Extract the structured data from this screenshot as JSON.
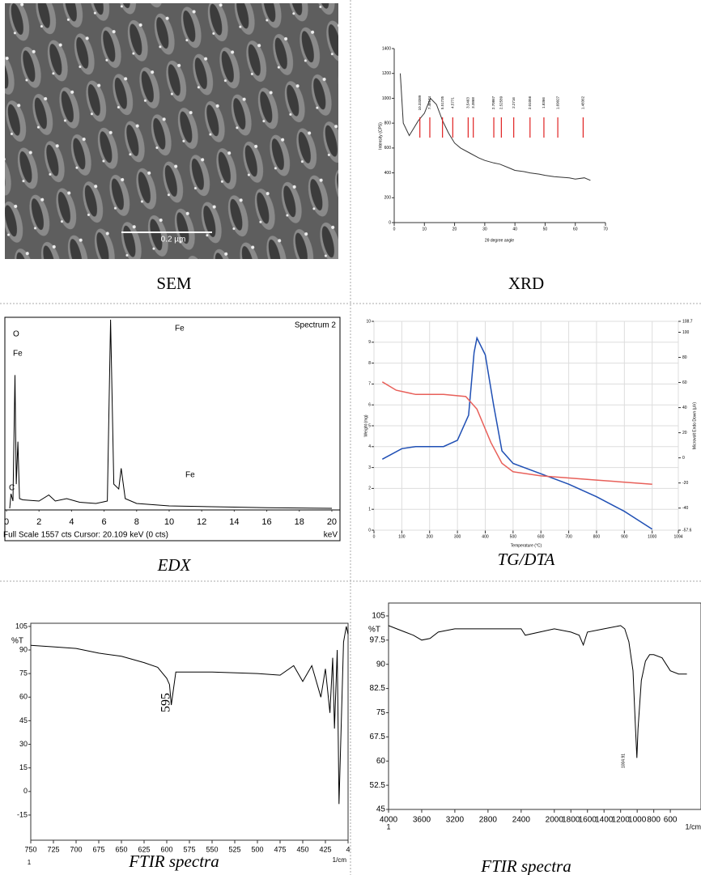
{
  "figure": {
    "panels": [
      {
        "caption": "SEM",
        "scale_bar": "0.2 µm"
      },
      {
        "caption": "XRD",
        "x_label": "2θ degree angle",
        "y_label": "Intensity (CPS)",
        "xlim": [
          0,
          70
        ],
        "ylim": [
          0,
          1400
        ],
        "xticks": [
          0,
          10,
          20,
          30,
          40,
          50,
          60,
          70
        ],
        "yticks": [
          0,
          200,
          400,
          600,
          800,
          1000,
          1200,
          1400
        ],
        "series": [
          {
            "color": "#333333",
            "x": [
              2,
              3,
              5,
              8,
              10,
              12,
              14,
              16,
              18,
              20,
              22,
              25,
              28,
              30,
              33,
              35,
              38,
              40,
              43,
              45,
              48,
              50,
              53,
              55,
              58,
              60,
              63,
              65
            ],
            "values": [
              1200,
              800,
              700,
              820,
              880,
              1000,
              950,
              820,
              720,
              640,
              600,
              560,
              520,
              500,
              480,
              470,
              440,
              420,
              410,
              400,
              390,
              380,
              370,
              365,
              360,
              350,
              360,
              340
            ]
          }
        ],
        "peaks": [
          {
            "x": 8.5,
            "label": "10.33389"
          },
          {
            "x": 11.8,
            "label": "7.46174"
          },
          {
            "x": 16,
            "label": "5.51735"
          },
          {
            "x": 19.4,
            "label": "4.5771"
          },
          {
            "x": 24.5,
            "label": "3.5463"
          },
          {
            "x": 26.2,
            "label": "3.3868"
          },
          {
            "x": 33,
            "label": "2.70867"
          },
          {
            "x": 35.5,
            "label": "2.52589"
          },
          {
            "x": 39.6,
            "label": "2.2716"
          },
          {
            "x": 45,
            "label": "2.01056"
          },
          {
            "x": 49.6,
            "label": "1.8366"
          },
          {
            "x": 54.2,
            "label": "1.69027"
          },
          {
            "x": 62.6,
            "label": "1.48362"
          }
        ],
        "grid": false
      },
      {
        "caption": "EDX",
        "spectrum_label": "Spectrum 2",
        "peak_labels": [
          "O",
          "Fe",
          "C",
          "Fe",
          "Fe"
        ],
        "x_unit": "keV",
        "footer": "Full Scale 1557 cts  Cursor: 20.109 keV (0 cts)",
        "xlim": [
          0,
          20.5
        ],
        "ylim": [
          0,
          1557
        ],
        "xticks": [
          0,
          2,
          4,
          6,
          8,
          10,
          12,
          14,
          16,
          18,
          20
        ],
        "yticks": [],
        "series": [
          {
            "color": "#000000",
            "x": [
              0.2,
              0.28,
              0.4,
              0.52,
              0.6,
              0.7,
              0.8,
              1.0,
              2.0,
              2.6,
              3.0,
              3.7,
              4.5,
              5.5,
              6.2,
              6.4,
              6.6,
              6.9,
              7.05,
              7.3,
              8,
              10,
              12,
              14,
              16,
              20
            ],
            "values": [
              0,
              120,
              60,
              1100,
              200,
              550,
              80,
              70,
              60,
              110,
              60,
              80,
              50,
              40,
              60,
              1557,
              200,
              160,
              330,
              80,
              40,
              20,
              15,
              10,
              5,
              0
            ]
          }
        ],
        "grid": false
      },
      {
        "caption": "TG/DTA",
        "x_label": "Temperature (°C)",
        "y_label": "Weight (mg)",
        "y2_label": "Microvolt Endo Down (µV)",
        "xlim": [
          0,
          1094
        ],
        "ylim": [
          0,
          10
        ],
        "y2lim": [
          -57.6,
          108.7
        ],
        "xticks": [
          0,
          100,
          200,
          300,
          400,
          500,
          600,
          700,
          800,
          900,
          1000,
          1094
        ],
        "yticks": [
          0,
          1,
          2,
          3,
          4,
          5,
          6,
          7,
          8,
          9,
          10
        ],
        "y2ticks": [
          -57.6,
          -40,
          -20,
          0,
          20,
          40,
          60,
          80,
          100,
          108.7
        ],
        "series": [
          {
            "color": "#1f4fb4",
            "axis": "y2",
            "x": [
              30,
              100,
              150,
              250,
              300,
              340,
              360,
              370,
              400,
              430,
              460,
              500,
              600,
              700,
              800,
              900,
              1000
            ],
            "values": [
              -1.1,
              7.3,
              9,
              9,
              14,
              34,
              84,
              95.4,
              82,
              42,
              5.6,
              -4.4,
              -12.7,
              -21,
              -31,
              -42.6,
              -56.8
            ]
          },
          {
            "color": "#e8605a",
            "x": [
              30,
              80,
              150,
              250,
              330,
              370,
              420,
              460,
              500,
              600,
              800,
              1000
            ],
            "values": [
              7.1,
              6.7,
              6.5,
              6.5,
              6.4,
              5.8,
              4.2,
              3.2,
              2.8,
              2.6,
              2.4,
              2.2
            ]
          }
        ],
        "grid": true
      },
      {
        "caption": "FTIR spectra",
        "y_label": "%T",
        "x_sub": "1",
        "x_unit": "1/cm",
        "peak_label": "595",
        "xlim": [
          750,
          400
        ],
        "ylim": [
          -31,
          107
        ],
        "xticks": [
          750,
          725,
          700,
          675,
          650,
          625,
          600,
          575,
          550,
          525,
          500,
          475,
          450,
          425,
          {
            "value": 400,
            "label": "4"
          }
        ],
        "yticks": [
          -15,
          0,
          15,
          30,
          45,
          60,
          75,
          90,
          105
        ],
        "series": [
          {
            "color": "#000000",
            "x": [
              750,
              725,
              700,
              675,
              650,
              625,
              610,
              600,
              597,
              595,
              590,
              575,
              550,
              500,
              475,
              460,
              450,
              440,
              430,
              425,
              420,
              417,
              415,
              412,
              410,
              405,
              402,
              400
            ],
            "values": [
              93,
              92,
              91,
              88,
              86,
              82,
              79,
              72,
              68,
              55,
              76,
              76,
              76,
              75,
              74,
              80,
              70,
              80,
              60,
              78,
              50,
              85,
              40,
              90,
              -8,
              95,
              105,
              100
            ]
          }
        ],
        "grid": false
      },
      {
        "caption": "FTIR spectra",
        "y_label": "%T",
        "x_sub": "1",
        "x_unit": "1/cm",
        "peak_label": "1004.91",
        "xlim": [
          4000,
          230
        ],
        "ylim": [
          45,
          109
        ],
        "xticks": [
          4000,
          3600,
          3200,
          2800,
          2400,
          2000,
          1800,
          1600,
          1400,
          1200,
          1000,
          800,
          600
        ],
        "yticks": [
          45,
          52.5,
          60,
          67.5,
          75,
          82.5,
          90,
          97.5,
          105
        ],
        "series": [
          {
            "color": "#000000",
            "x": [
              4000,
              3900,
              3800,
              3700,
              3600,
              3500,
              3400,
              3200,
              2800,
              2400,
              2350,
              2000,
              1800,
              1700,
              1650,
              1600,
              1400,
              1200,
              1150,
              1100,
              1050,
              1020,
              1004,
              990,
              950,
              900,
              850,
              800,
              700,
              600,
              500,
              400
            ],
            "values": [
              102,
              101,
              100,
              99,
              97.5,
              98,
              100,
              101,
              101,
              101,
              99,
              101,
              100,
              99,
              96,
              100,
              101,
              102,
              101,
              97,
              88,
              70,
              61,
              70,
              85,
              91,
              93,
              93,
              92,
              88,
              87,
              87
            ]
          }
        ],
        "grid": false
      }
    ]
  }
}
